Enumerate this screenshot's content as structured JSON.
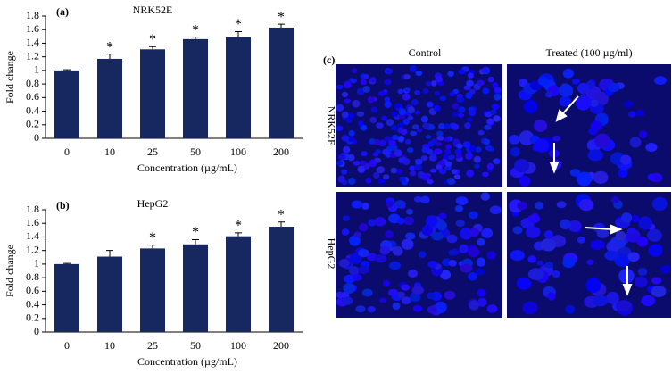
{
  "chart_data": [
    {
      "type": "bar",
      "panel_label": "(a)",
      "title": "NRK52E",
      "categories": [
        "0",
        "10",
        "25",
        "50",
        "100",
        "200"
      ],
      "values": [
        1.0,
        1.17,
        1.31,
        1.46,
        1.49,
        1.63
      ],
      "errors": [
        0.01,
        0.07,
        0.04,
        0.03,
        0.08,
        0.05
      ],
      "significance": [
        null,
        "*",
        "*",
        "*",
        "*",
        "*"
      ],
      "color": "#17275f",
      "ylim": [
        0,
        1.8
      ],
      "yticks": [
        0,
        0.2,
        0.4,
        0.6,
        0.8,
        1,
        1.2,
        1.4,
        1.6,
        1.8
      ],
      "xlabel": "Concentration (µg/mL)",
      "ylabel": "Fold change"
    },
    {
      "type": "bar",
      "panel_label": "(b)",
      "title": "HepG2",
      "categories": [
        "0",
        "10",
        "25",
        "50",
        "100",
        "200"
      ],
      "values": [
        1.0,
        1.11,
        1.23,
        1.29,
        1.41,
        1.55
      ],
      "errors": [
        0.01,
        0.09,
        0.05,
        0.07,
        0.05,
        0.07
      ],
      "significance": [
        null,
        null,
        "*",
        "*",
        "*",
        "*"
      ],
      "color": "#17275f",
      "ylim": [
        0,
        1.8
      ],
      "yticks": [
        0,
        0.2,
        0.4,
        0.6,
        0.8,
        1,
        1.2,
        1.4,
        1.6,
        1.8
      ],
      "xlabel": "Concentration (µg/mL)",
      "ylabel": "Fold change"
    }
  ],
  "image_panel": {
    "label": "(c)",
    "columns": [
      "Control",
      "Treated (100 µg/ml)"
    ],
    "rows": [
      "NRK52E",
      "HepG2"
    ]
  }
}
